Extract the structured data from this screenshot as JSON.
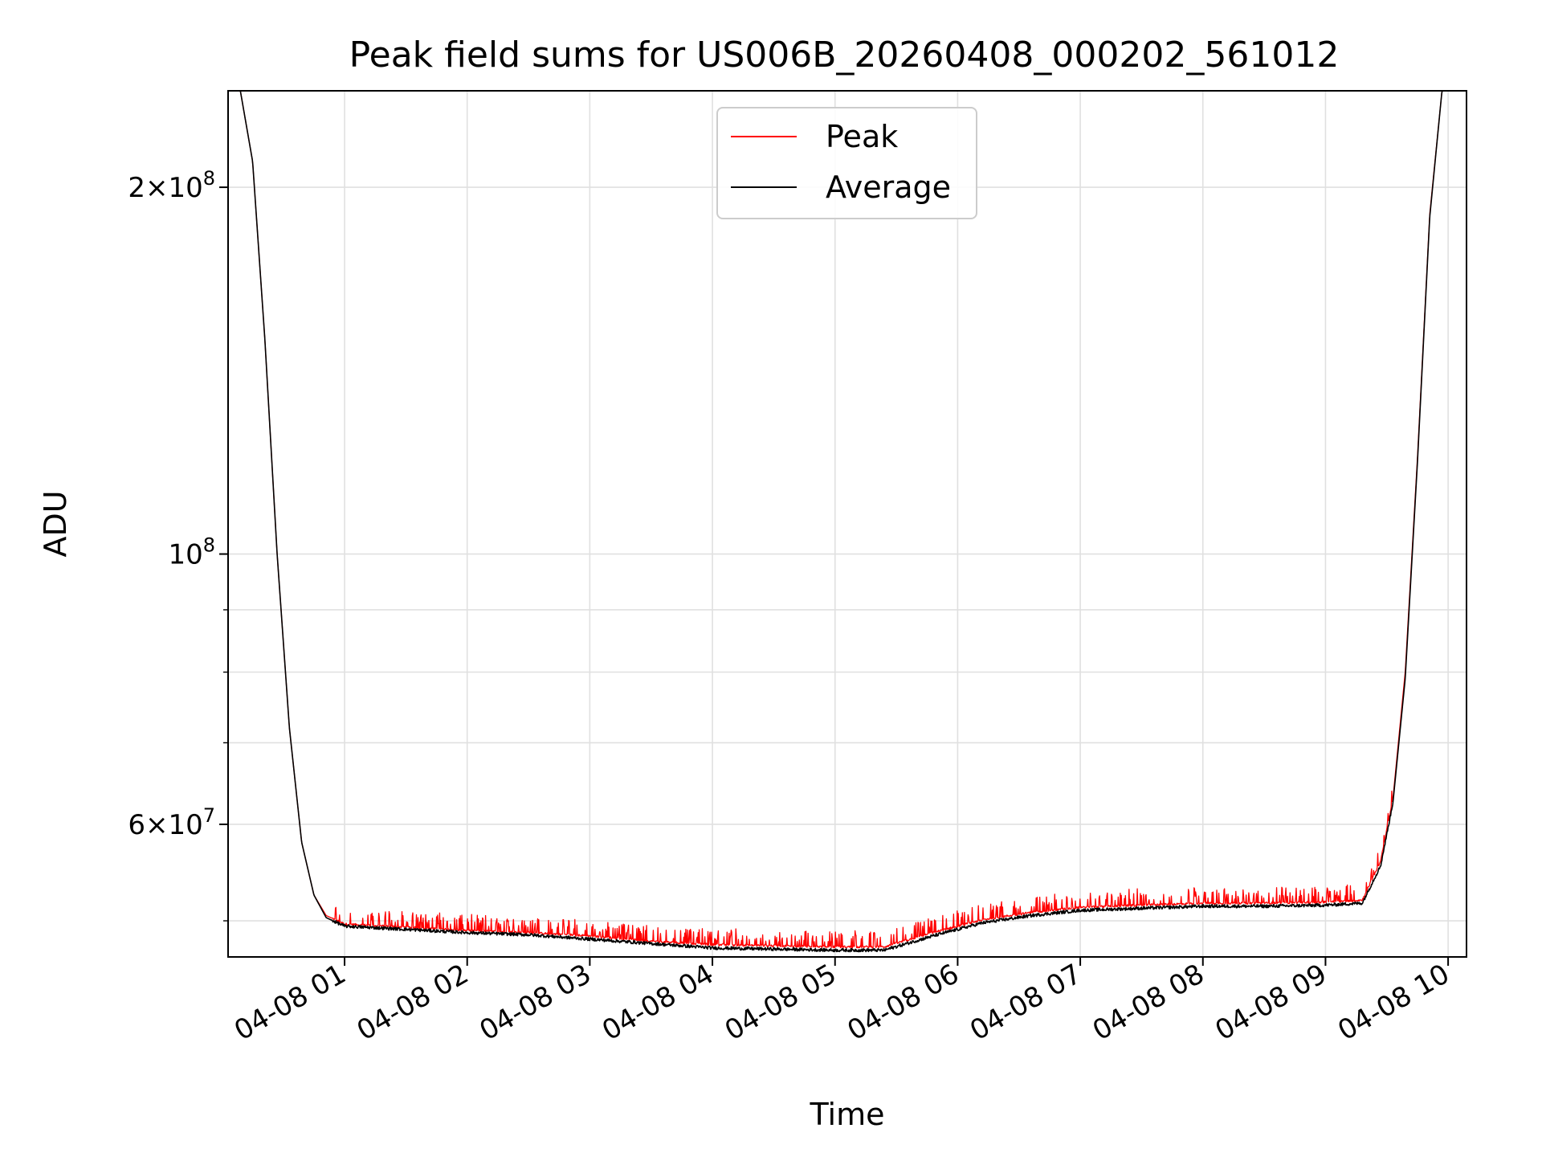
{
  "chart_data": {
    "type": "line",
    "title": "Peak field sums for US006B_20260408_000202_561012",
    "xlabel": "Time",
    "ylabel": "ADU",
    "yscale": "log",
    "ylim": [
      46700000,
      240000000
    ],
    "xlim_hours": [
      0.05,
      10.15
    ],
    "grid": true,
    "legend": {
      "location": "upper center",
      "entries": [
        "Peak",
        "Average"
      ]
    },
    "x_ticks": [
      {
        "hour": 1,
        "label": "04-08 01"
      },
      {
        "hour": 2,
        "label": "04-08 02"
      },
      {
        "hour": 3,
        "label": "04-08 03"
      },
      {
        "hour": 4,
        "label": "04-08 04"
      },
      {
        "hour": 5,
        "label": "04-08 05"
      },
      {
        "hour": 6,
        "label": "04-08 06"
      },
      {
        "hour": 7,
        "label": "04-08 07"
      },
      {
        "hour": 8,
        "label": "04-08 08"
      },
      {
        "hour": 9,
        "label": "04-08 09"
      },
      {
        "hour": 10,
        "label": "04-08 10"
      }
    ],
    "y_major_ticks": [
      {
        "value": 60000000,
        "mantissa": "6",
        "exponent": "7",
        "has_mantissa": true
      },
      {
        "value": 100000000,
        "mantissa": "",
        "exponent": "8",
        "has_mantissa": false
      },
      {
        "value": 200000000,
        "mantissa": "2",
        "exponent": "8",
        "has_mantissa": true
      }
    ],
    "y_minor_ticks": [
      50000000,
      70000000,
      80000000,
      90000000
    ],
    "series": [
      {
        "name": "Peak",
        "color": "#ff0000",
        "spiky": true,
        "x_hours": [
          0.05,
          0.15,
          0.25,
          0.35,
          0.45,
          0.55,
          0.65,
          0.75,
          0.85,
          1.0,
          1.5,
          2.0,
          2.5,
          3.0,
          3.5,
          4.0,
          4.5,
          5.0,
          5.4,
          5.8,
          6.2,
          6.6,
          7.0,
          7.5,
          8.0,
          8.5,
          9.0,
          9.3,
          9.45,
          9.55,
          9.65,
          9.75,
          9.85,
          9.95,
          10.15
        ],
        "y": [
          240000000,
          240000000,
          210000000,
          150000000,
          100000000,
          72000000,
          58000000,
          52500000,
          50500000,
          49700000,
          49400000,
          49100000,
          48900000,
          48600000,
          48100000,
          47800000,
          47700000,
          47600000,
          47600000,
          48900000,
          50100000,
          50800000,
          51300000,
          51500000,
          51700000,
          51700000,
          51800000,
          52000000,
          56000000,
          63000000,
          80000000,
          120000000,
          190000000,
          240000000,
          240000000
        ]
      },
      {
        "name": "Average",
        "color": "#000000",
        "spiky": false,
        "x_hours": [
          0.05,
          0.15,
          0.25,
          0.35,
          0.45,
          0.55,
          0.65,
          0.75,
          0.85,
          1.0,
          1.5,
          2.0,
          2.5,
          3.0,
          3.5,
          4.0,
          4.5,
          5.0,
          5.4,
          5.8,
          6.2,
          6.6,
          7.0,
          7.5,
          8.0,
          8.5,
          9.0,
          9.3,
          9.45,
          9.55,
          9.65,
          9.75,
          9.85,
          9.95,
          10.15
        ],
        "y": [
          240000000,
          240000000,
          210000000,
          150000000,
          100000000,
          72000000,
          58000000,
          52500000,
          50300000,
          49500000,
          49200000,
          48900000,
          48700000,
          48300000,
          47900000,
          47500000,
          47400000,
          47300000,
          47300000,
          48600000,
          49800000,
          50500000,
          51000000,
          51200000,
          51400000,
          51400000,
          51500000,
          51700000,
          55500000,
          62500000,
          79000000,
          119000000,
          189000000,
          240000000,
          240000000
        ]
      }
    ]
  }
}
